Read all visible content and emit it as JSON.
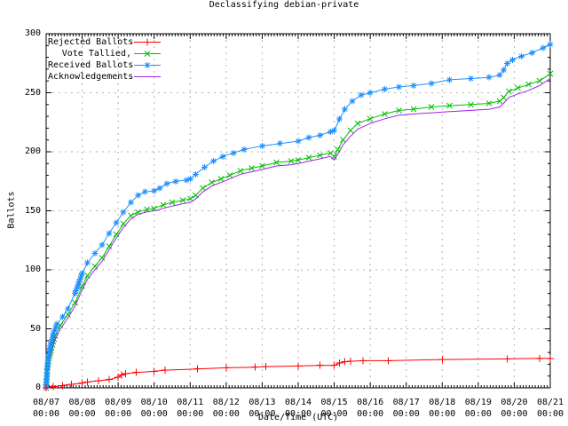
{
  "window": {
    "background": "#ffffff",
    "border_color": "#000000",
    "grid_color": "#b0b0b0",
    "text_color": "#000000"
  },
  "chart_data": {
    "type": "line",
    "title": "Declassifying debian-private",
    "xlabel": "Date/Time (UTC)",
    "ylabel": "Ballots",
    "ylim": [
      0,
      300
    ],
    "xlim_days": [
      0,
      14
    ],
    "grid": true,
    "legend_position": "top-left-inside",
    "y_ticks": [
      0,
      50,
      100,
      150,
      200,
      250,
      300
    ],
    "y_minor_step": 10,
    "x_tick_dates": [
      "08/07",
      "08/08",
      "08/09",
      "08/10",
      "08/11",
      "08/12",
      "08/13",
      "08/14",
      "08/15",
      "08/16",
      "08/17",
      "08/18",
      "08/19",
      "08/20",
      "08/21"
    ],
    "x_tick_time": "00:00",
    "x_minor_per_day": 12,
    "series": [
      {
        "name": "Rejected Ballots",
        "color": "#ff0000",
        "marker": "plus",
        "marker_density": "vertices",
        "points": [
          [
            0,
            0
          ],
          [
            0.2,
            1
          ],
          [
            0.45,
            2
          ],
          [
            0.7,
            3
          ],
          [
            1.0,
            4
          ],
          [
            1.15,
            5
          ],
          [
            1.45,
            6
          ],
          [
            1.75,
            7
          ],
          [
            2.0,
            9
          ],
          [
            2.1,
            11
          ],
          [
            2.2,
            12
          ],
          [
            2.5,
            13
          ],
          [
            3.0,
            14
          ],
          [
            3.3,
            15
          ],
          [
            4.2,
            16
          ],
          [
            5.0,
            17
          ],
          [
            5.8,
            17.5
          ],
          [
            6.1,
            18
          ],
          [
            7.0,
            18.5
          ],
          [
            7.6,
            19
          ],
          [
            8.0,
            19
          ],
          [
            8.15,
            21
          ],
          [
            8.3,
            22
          ],
          [
            8.45,
            22.5
          ],
          [
            8.8,
            23
          ],
          [
            9.5,
            23
          ],
          [
            11.0,
            24
          ],
          [
            12.8,
            24.5
          ],
          [
            13.7,
            25
          ],
          [
            14.0,
            25
          ]
        ]
      },
      {
        "name": "Vote Tallied,",
        "color": "#00c000",
        "marker": "cross",
        "marker_density": "dense",
        "points": [
          [
            0,
            0
          ],
          [
            0.03,
            14
          ],
          [
            0.08,
            25
          ],
          [
            0.15,
            34
          ],
          [
            0.25,
            44
          ],
          [
            0.4,
            53
          ],
          [
            0.6,
            62
          ],
          [
            0.8,
            72
          ],
          [
            1.0,
            86
          ],
          [
            1.15,
            95
          ],
          [
            1.35,
            103
          ],
          [
            1.55,
            110
          ],
          [
            1.75,
            120
          ],
          [
            1.95,
            130
          ],
          [
            2.15,
            139
          ],
          [
            2.35,
            146
          ],
          [
            2.55,
            149
          ],
          [
            2.8,
            151
          ],
          [
            3.0,
            152
          ],
          [
            3.25,
            155
          ],
          [
            3.5,
            157
          ],
          [
            3.8,
            159
          ],
          [
            4.0,
            160
          ],
          [
            4.15,
            163
          ],
          [
            4.35,
            169
          ],
          [
            4.6,
            174
          ],
          [
            4.85,
            177
          ],
          [
            5.1,
            180
          ],
          [
            5.4,
            184
          ],
          [
            5.7,
            186
          ],
          [
            6.0,
            188
          ],
          [
            6.4,
            191
          ],
          [
            6.8,
            192
          ],
          [
            7.0,
            193
          ],
          [
            7.3,
            195
          ],
          [
            7.6,
            197
          ],
          [
            7.9,
            199
          ],
          [
            8.0,
            196
          ],
          [
            8.1,
            202
          ],
          [
            8.25,
            210
          ],
          [
            8.45,
            218
          ],
          [
            8.65,
            224
          ],
          [
            9.0,
            228
          ],
          [
            9.4,
            232
          ],
          [
            9.8,
            235
          ],
          [
            10.2,
            236
          ],
          [
            10.7,
            238
          ],
          [
            11.2,
            239
          ],
          [
            11.8,
            240
          ],
          [
            12.3,
            241
          ],
          [
            12.6,
            243
          ],
          [
            12.7,
            246
          ],
          [
            12.85,
            251
          ],
          [
            13.1,
            254
          ],
          [
            13.4,
            257
          ],
          [
            13.7,
            260
          ],
          [
            14.0,
            266
          ]
        ]
      },
      {
        "name": "Received Ballots",
        "color": "#1e90ff",
        "marker": "star",
        "marker_density": "dense",
        "points": [
          [
            0,
            0
          ],
          [
            0.03,
            16
          ],
          [
            0.07,
            28
          ],
          [
            0.12,
            36
          ],
          [
            0.2,
            46
          ],
          [
            0.3,
            54
          ],
          [
            0.45,
            60
          ],
          [
            0.6,
            67
          ],
          [
            0.8,
            80
          ],
          [
            1.0,
            97
          ],
          [
            1.15,
            106
          ],
          [
            1.35,
            114
          ],
          [
            1.55,
            121
          ],
          [
            1.75,
            131
          ],
          [
            1.95,
            140
          ],
          [
            2.15,
            149
          ],
          [
            2.35,
            157
          ],
          [
            2.55,
            163
          ],
          [
            2.75,
            166
          ],
          [
            3.0,
            167
          ],
          [
            3.15,
            169
          ],
          [
            3.35,
            173
          ],
          [
            3.6,
            175
          ],
          [
            3.9,
            176
          ],
          [
            4.0,
            177
          ],
          [
            4.15,
            181
          ],
          [
            4.4,
            187
          ],
          [
            4.65,
            192
          ],
          [
            4.9,
            196
          ],
          [
            5.2,
            199
          ],
          [
            5.5,
            202
          ],
          [
            6.0,
            205
          ],
          [
            6.5,
            207
          ],
          [
            7.0,
            209
          ],
          [
            7.3,
            212
          ],
          [
            7.6,
            214
          ],
          [
            7.9,
            217
          ],
          [
            8.0,
            218
          ],
          [
            8.15,
            228
          ],
          [
            8.3,
            236
          ],
          [
            8.5,
            243
          ],
          [
            8.75,
            248
          ],
          [
            9.0,
            250
          ],
          [
            9.4,
            253
          ],
          [
            9.8,
            255
          ],
          [
            10.2,
            256
          ],
          [
            10.7,
            258
          ],
          [
            11.2,
            261
          ],
          [
            11.8,
            262
          ],
          [
            12.3,
            263
          ],
          [
            12.6,
            265
          ],
          [
            12.7,
            269
          ],
          [
            12.8,
            275
          ],
          [
            12.95,
            278
          ],
          [
            13.2,
            281
          ],
          [
            13.5,
            284
          ],
          [
            13.8,
            288
          ],
          [
            14.0,
            291
          ]
        ]
      },
      {
        "name": "Acknowledgements",
        "color": "#a020f0",
        "marker": "none",
        "marker_density": "none",
        "points": [
          [
            0,
            0
          ],
          [
            0.03,
            12
          ],
          [
            0.08,
            22
          ],
          [
            0.15,
            31
          ],
          [
            0.25,
            41
          ],
          [
            0.4,
            50
          ],
          [
            0.6,
            59
          ],
          [
            0.8,
            69
          ],
          [
            1.0,
            83
          ],
          [
            1.15,
            92
          ],
          [
            1.35,
            100
          ],
          [
            1.55,
            107
          ],
          [
            1.75,
            117
          ],
          [
            1.95,
            127
          ],
          [
            2.15,
            136
          ],
          [
            2.35,
            143
          ],
          [
            2.55,
            147
          ],
          [
            2.8,
            149
          ],
          [
            3.0,
            150
          ],
          [
            3.25,
            152
          ],
          [
            3.5,
            154
          ],
          [
            3.8,
            156
          ],
          [
            4.0,
            157
          ],
          [
            4.15,
            160
          ],
          [
            4.35,
            166
          ],
          [
            4.6,
            171
          ],
          [
            4.85,
            174
          ],
          [
            5.1,
            177
          ],
          [
            5.4,
            181
          ],
          [
            5.7,
            183
          ],
          [
            6.0,
            185
          ],
          [
            6.4,
            188
          ],
          [
            6.8,
            189
          ],
          [
            7.0,
            190
          ],
          [
            7.3,
            192
          ],
          [
            7.6,
            194
          ],
          [
            7.9,
            196
          ],
          [
            8.0,
            193
          ],
          [
            8.1,
            198
          ],
          [
            8.25,
            206
          ],
          [
            8.45,
            213
          ],
          [
            8.65,
            219
          ],
          [
            9.0,
            224
          ],
          [
            9.4,
            228
          ],
          [
            9.8,
            231
          ],
          [
            10.2,
            232
          ],
          [
            10.7,
            233
          ],
          [
            11.2,
            234
          ],
          [
            11.8,
            235
          ],
          [
            12.3,
            236
          ],
          [
            12.6,
            238
          ],
          [
            12.7,
            241
          ],
          [
            12.85,
            246
          ],
          [
            13.1,
            249
          ],
          [
            13.4,
            252
          ],
          [
            13.7,
            256
          ],
          [
            14.0,
            262
          ]
        ]
      }
    ]
  }
}
